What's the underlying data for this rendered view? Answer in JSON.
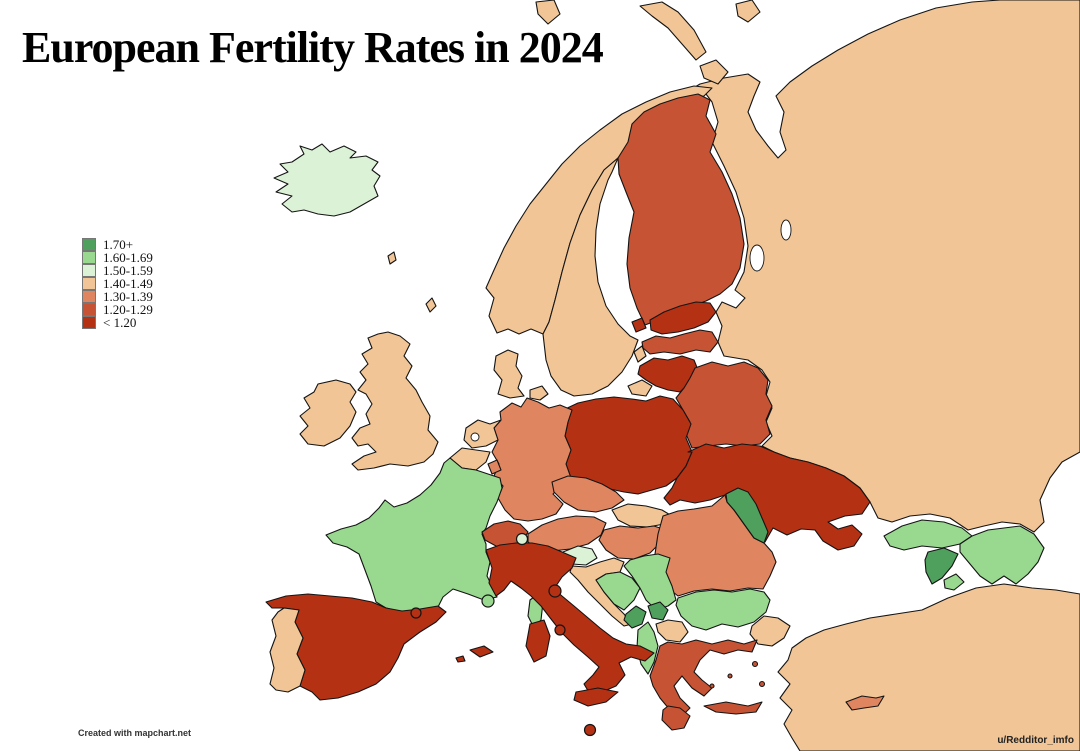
{
  "title": "European Fertility Rates in 2024",
  "legend": {
    "items": [
      {
        "label": "1.70+",
        "color": "#4f9f5d"
      },
      {
        "label": "1.60-1.69",
        "color": "#98d88f"
      },
      {
        "label": "1.50-1.59",
        "color": "#dcf2d7"
      },
      {
        "label": "1.40-1.49",
        "color": "#f1c595"
      },
      {
        "label": "1.30-1.39",
        "color": "#df8660"
      },
      {
        "label": "1.20-1.29",
        "color": "#c65434"
      },
      {
        "label": "< 1.20",
        "color": "#b53114"
      }
    ]
  },
  "footer": {
    "credit": "Created with mapchart.net",
    "attribution": "u/Redditor_imfo"
  },
  "map": {
    "sea_color": "#ffffff",
    "border_color": "#141414",
    "countries": [
      {
        "id": "russia",
        "name": "Russia",
        "value": "1.40-1.49"
      },
      {
        "id": "norway",
        "name": "Norway",
        "value": "1.40-1.49"
      },
      {
        "id": "sweden",
        "name": "Sweden",
        "value": "1.40-1.49"
      },
      {
        "id": "finland",
        "name": "Finland",
        "value": "1.20-1.29"
      },
      {
        "id": "iceland",
        "name": "Iceland",
        "value": "1.50-1.59"
      },
      {
        "id": "ireland",
        "name": "Ireland",
        "value": "1.40-1.49"
      },
      {
        "id": "uk",
        "name": "United Kingdom",
        "value": "1.40-1.49"
      },
      {
        "id": "denmark",
        "name": "Denmark",
        "value": "1.40-1.49"
      },
      {
        "id": "estonia",
        "name": "Estonia",
        "value": "< 1.20"
      },
      {
        "id": "latvia",
        "name": "Latvia",
        "value": "1.20-1.29"
      },
      {
        "id": "lithuania",
        "name": "Lithuania",
        "value": "< 1.20"
      },
      {
        "id": "belarus",
        "name": "Belarus",
        "value": "1.20-1.29"
      },
      {
        "id": "poland",
        "name": "Poland",
        "value": "< 1.20"
      },
      {
        "id": "germany",
        "name": "Germany",
        "value": "1.30-1.39"
      },
      {
        "id": "netherlands",
        "name": "Netherlands",
        "value": "1.40-1.49"
      },
      {
        "id": "belgium",
        "name": "Belgium",
        "value": "1.40-1.49"
      },
      {
        "id": "luxembourg",
        "name": "Luxembourg",
        "value": "1.30-1.39"
      },
      {
        "id": "france",
        "name": "France",
        "value": "1.60-1.69"
      },
      {
        "id": "switzerland",
        "name": "Switzerland",
        "value": "1.20-1.29"
      },
      {
        "id": "liechtenstein",
        "name": "Liechtenstein",
        "value": "1.50-1.59"
      },
      {
        "id": "austria",
        "name": "Austria",
        "value": "1.30-1.39"
      },
      {
        "id": "czechia",
        "name": "Czechia",
        "value": "1.30-1.39"
      },
      {
        "id": "slovakia",
        "name": "Slovakia",
        "value": "1.40-1.49"
      },
      {
        "id": "hungary",
        "name": "Hungary",
        "value": "1.30-1.39"
      },
      {
        "id": "slovenia",
        "name": "Slovenia",
        "value": "1.50-1.59"
      },
      {
        "id": "croatia",
        "name": "Croatia",
        "value": "1.40-1.49"
      },
      {
        "id": "bosnia",
        "name": "Bosnia and Herzegovina",
        "value": "1.60-1.69"
      },
      {
        "id": "serbia",
        "name": "Serbia",
        "value": "1.60-1.69"
      },
      {
        "id": "montenegro",
        "name": "Montenegro",
        "value": "1.70+"
      },
      {
        "id": "kosovo",
        "name": "Kosovo",
        "value": "1.70+"
      },
      {
        "id": "north-macedonia",
        "name": "North Macedonia",
        "value": "1.40-1.49"
      },
      {
        "id": "albania",
        "name": "Albania",
        "value": "1.60-1.69"
      },
      {
        "id": "greece",
        "name": "Greece",
        "value": "1.20-1.29"
      },
      {
        "id": "bulgaria",
        "name": "Bulgaria",
        "value": "1.60-1.69"
      },
      {
        "id": "romania",
        "name": "Romania",
        "value": "1.30-1.39"
      },
      {
        "id": "moldova",
        "name": "Moldova",
        "value": "1.70+"
      },
      {
        "id": "ukraine",
        "name": "Ukraine",
        "value": "< 1.20"
      },
      {
        "id": "spain",
        "name": "Spain",
        "value": "< 1.20"
      },
      {
        "id": "portugal",
        "name": "Portugal",
        "value": "1.40-1.49"
      },
      {
        "id": "andorra",
        "name": "Andorra",
        "value": "< 1.20"
      },
      {
        "id": "monaco",
        "name": "Monaco",
        "value": "1.60-1.69"
      },
      {
        "id": "italy",
        "name": "Italy",
        "value": "< 1.20"
      },
      {
        "id": "san-marino",
        "name": "San Marino",
        "value": "< 1.20"
      },
      {
        "id": "vatican",
        "name": "Vatican City",
        "value": "< 1.20"
      },
      {
        "id": "malta",
        "name": "Malta",
        "value": "< 1.20"
      },
      {
        "id": "turkey",
        "name": "Turkey",
        "value": "1.40-1.49"
      },
      {
        "id": "cyprus",
        "name": "Cyprus",
        "value": "1.30-1.39"
      },
      {
        "id": "georgia",
        "name": "Georgia",
        "value": "1.60-1.69"
      },
      {
        "id": "armenia",
        "name": "Armenia",
        "value": "1.70+"
      },
      {
        "id": "azerbaijan",
        "name": "Azerbaijan",
        "value": "1.60-1.69"
      }
    ]
  }
}
